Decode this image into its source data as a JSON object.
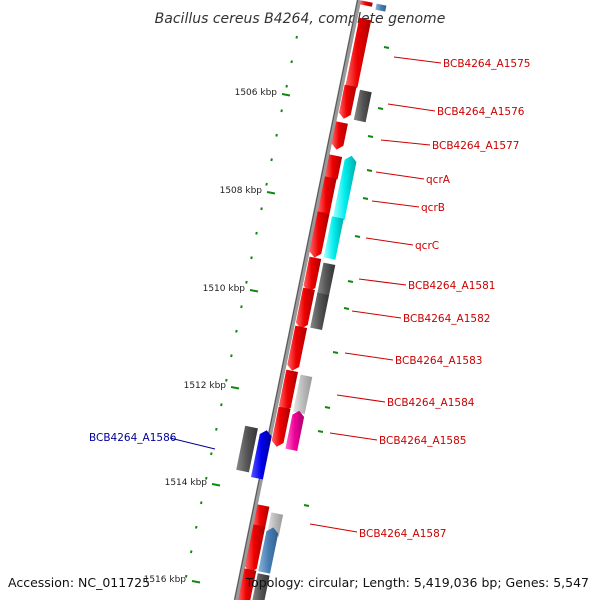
{
  "title": "Bacillus cereus B4264, complete genome",
  "footer": {
    "accession": "Accession: NC_011725",
    "topology": "Topology: circular; Length: 5,419,036 bp; Genes: 5,547"
  },
  "colors": {
    "forward_gene": "#ee0000",
    "reverse_gene_dark": "#555555",
    "reverse_gene_light": "#bbbbbb",
    "qcr_gene": "#00eeee",
    "magenta_gene": "#ee0099",
    "blue_gene": "#0000ee",
    "steel_gene": "#4a7fb5",
    "tick": "#118811",
    "backbone": "#888888",
    "red_label": "#cc0000",
    "blue_label": "#000099"
  },
  "kbp_labels": [
    {
      "text": "1506 kbp",
      "pos": 1506
    },
    {
      "text": "1508 kbp",
      "pos": 1508
    },
    {
      "text": "1510 kbp",
      "pos": 1510
    },
    {
      "text": "1512 kbp",
      "pos": 1512
    },
    {
      "text": "1514 kbp",
      "pos": 1514
    },
    {
      "text": "1516 kbp",
      "pos": 1516
    }
  ],
  "gene_labels": [
    {
      "text": "BCB4264_A1575",
      "color": "red"
    },
    {
      "text": "BCB4264_A1576",
      "color": "red"
    },
    {
      "text": "BCB4264_A1577",
      "color": "red"
    },
    {
      "text": "qcrA",
      "color": "red"
    },
    {
      "text": "qcrB",
      "color": "red"
    },
    {
      "text": "qcrC",
      "color": "red"
    },
    {
      "text": "BCB4264_A1581",
      "color": "red"
    },
    {
      "text": "BCB4264_A1582",
      "color": "red"
    },
    {
      "text": "BCB4264_A1583",
      "color": "red"
    },
    {
      "text": "BCB4264_A1584",
      "color": "red"
    },
    {
      "text": "BCB4264_A1585",
      "color": "red"
    },
    {
      "text": "BCB4264_A1586",
      "color": "blue"
    },
    {
      "text": "BCB4264_A1587",
      "color": "red"
    }
  ]
}
